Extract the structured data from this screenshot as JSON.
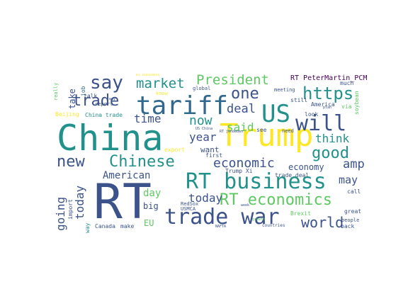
{
  "palette": {
    "dark_purple": "#440154",
    "indigo": "#3b528b",
    "teal": "#21918c",
    "green": "#5ec962",
    "yellow": "#fde725",
    "navy": "#31688e"
  },
  "words": [
    {
      "text": "China"
    },
    {
      "text": "RT"
    },
    {
      "text": "Trump"
    },
    {
      "text": "US"
    },
    {
      "text": "tariff"
    },
    {
      "text": "trade war"
    },
    {
      "text": "RT business"
    },
    {
      "text": "RT economics"
    },
    {
      "text": "will"
    },
    {
      "text": "say"
    },
    {
      "text": "President"
    },
    {
      "text": "market"
    },
    {
      "text": "trade"
    },
    {
      "text": "one"
    },
    {
      "text": "https"
    },
    {
      "text": "new"
    },
    {
      "text": "Chinese"
    },
    {
      "text": "economic"
    },
    {
      "text": "time"
    },
    {
      "text": "now"
    },
    {
      "text": "said"
    },
    {
      "text": "deal"
    },
    {
      "text": "year"
    },
    {
      "text": "good"
    },
    {
      "text": "think"
    },
    {
      "text": "amp"
    },
    {
      "text": "American"
    },
    {
      "text": "world"
    },
    {
      "text": "going"
    },
    {
      "text": "today"
    },
    {
      "text": "day"
    },
    {
      "text": "WTO"
    },
    {
      "text": "may"
    },
    {
      "text": "economy"
    },
    {
      "text": "want"
    },
    {
      "text": "RT PeterMartin_PCM"
    },
    {
      "text": "take"
    },
    {
      "text": "big"
    },
    {
      "text": "EU"
    },
    {
      "text": "Canada"
    },
    {
      "text": "make"
    },
    {
      "text": "Beijing"
    },
    {
      "text": "China trade"
    },
    {
      "text": "report"
    },
    {
      "text": "America"
    },
    {
      "text": "Trump Xi"
    },
    {
      "text": "trade deal"
    },
    {
      "text": "Brexit"
    },
    {
      "text": "great"
    },
    {
      "text": "people"
    },
    {
      "text": "back"
    },
    {
      "text": "call"
    },
    {
      "text": "export"
    },
    {
      "text": "first"
    },
    {
      "text": "see"
    },
    {
      "text": "need"
    },
    {
      "text": "look"
    },
    {
      "text": "still"
    },
    {
      "text": "meeting"
    },
    {
      "text": "global"
    },
    {
      "text": "know"
    },
    {
      "text": "job"
    },
    {
      "text": "talk"
    },
    {
      "text": "RedSox"
    },
    {
      "text": "USMCA"
    },
    {
      "text": "countries"
    },
    {
      "text": "import"
    },
    {
      "text": "RT jendeben"
    },
    {
      "text": "NAFTA"
    },
    {
      "text": "US China"
    },
    {
      "text": "much"
    },
    {
      "text": "via"
    },
    {
      "text": "growth"
    },
    {
      "text": "plan"
    },
    {
      "text": "week"
    },
    {
      "text": "thing"
    },
    {
      "text": "way"
    },
    {
      "text": "RT business"
    },
    {
      "text": "soybean"
    },
    {
      "text": "really"
    },
    {
      "text": "story"
    }
  ]
}
